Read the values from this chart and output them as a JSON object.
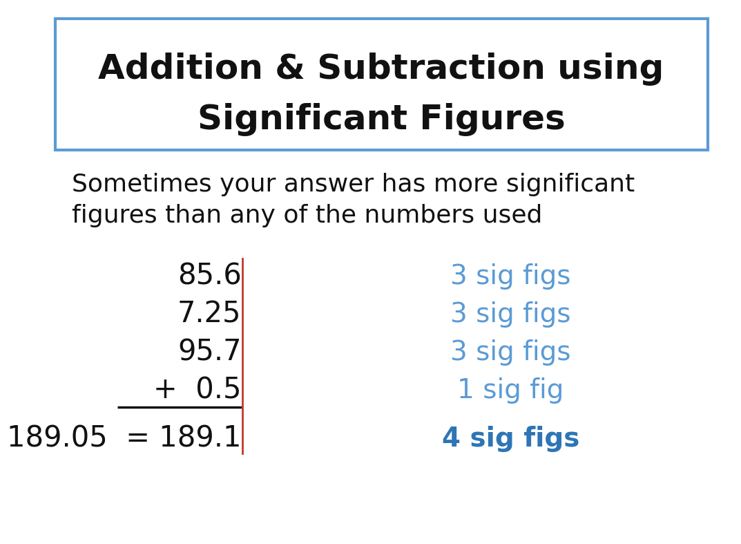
{
  "title_line1": "Addition & Subtraction using",
  "title_line2": "Significant Figures",
  "subtitle_line1": "Sometimes your answer has more significant",
  "subtitle_line2": "figures than any of the numbers used",
  "numbers": [
    "85.6",
    "7.25",
    "95.7",
    "+  0.5",
    "189.05  = 189.1"
  ],
  "sig_figs": [
    "3 sig figs",
    "3 sig figs",
    "3 sig figs",
    "1 sig fig",
    "4 sig figs"
  ],
  "numbers_color": "#111111",
  "sigfig_color_normal": "#5b9bd5",
  "sigfig_color_bold": "#2e75b6",
  "title_box_border": "#5b9bd5",
  "background_color": "#ffffff",
  "red_line_color": "#c0392b",
  "underline_color": "#111111",
  "title_fontsize": 36,
  "subtitle_fontsize": 26,
  "number_fontsize": 30,
  "sigfig_fontsize": 28
}
